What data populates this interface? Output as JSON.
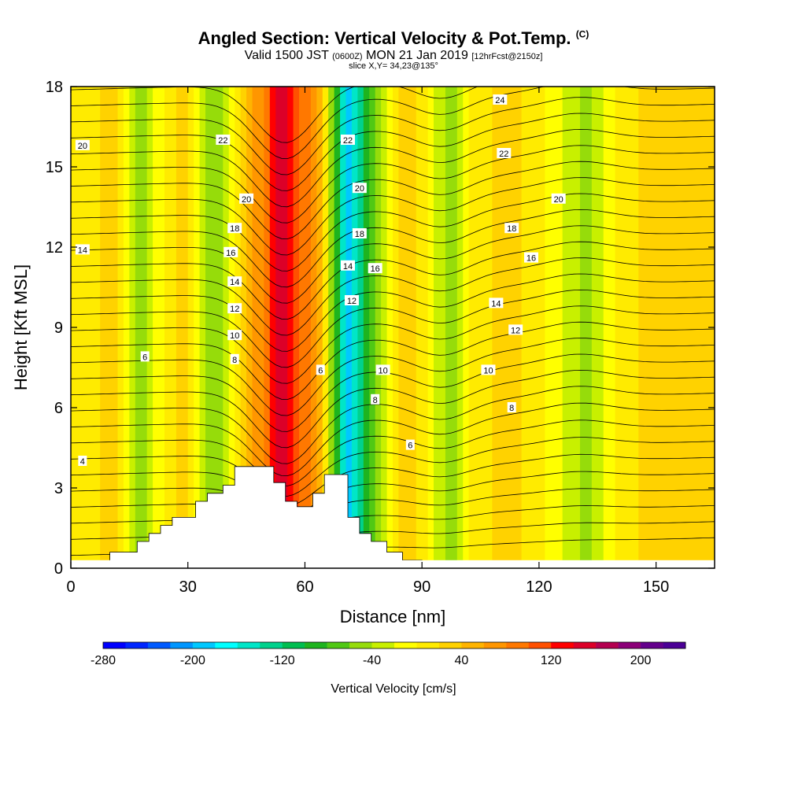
{
  "header": {
    "title": "Angled Section: Vertical Velocity & Pot.Temp.",
    "title_tag": "(C)",
    "valid_prefix": "Valid 1500 JST",
    "valid_utc": "(0600Z)",
    "valid_date": "MON 21 Jan 2019",
    "valid_fcst": "[12hrFcst@2150z]",
    "slice": "slice X,Y= 34,23@135°"
  },
  "chart_data": {
    "type": "heatmap",
    "xlabel": "Distance [nm]",
    "ylabel": "Height [Kft MSL]",
    "xlim": [
      0,
      165
    ],
    "ylim": [
      0,
      18
    ],
    "x_ticks": [
      0,
      30,
      60,
      90,
      120,
      150
    ],
    "y_ticks": [
      0,
      3,
      6,
      9,
      12,
      15,
      18
    ],
    "grid": false,
    "field": "Vertical Velocity",
    "velocity_bands": [
      {
        "x": 0,
        "value": 10
      },
      {
        "x": 12,
        "value": 25
      },
      {
        "x": 18,
        "value": -50
      },
      {
        "x": 24,
        "value": 5
      },
      {
        "x": 30,
        "value": 30
      },
      {
        "x": 35,
        "value": -60
      },
      {
        "x": 40,
        "value": -30
      },
      {
        "x": 45,
        "value": 40
      },
      {
        "x": 50,
        "value": 90
      },
      {
        "x": 54,
        "value": 160
      },
      {
        "x": 58,
        "value": 110
      },
      {
        "x": 64,
        "value": 50
      },
      {
        "x": 68,
        "value": -90
      },
      {
        "x": 71,
        "value": -190
      },
      {
        "x": 75,
        "value": -110
      },
      {
        "x": 80,
        "value": -30
      },
      {
        "x": 86,
        "value": 40
      },
      {
        "x": 92,
        "value": 0
      },
      {
        "x": 97,
        "value": -60
      },
      {
        "x": 103,
        "value": 10
      },
      {
        "x": 112,
        "value": 30
      },
      {
        "x": 120,
        "value": 10
      },
      {
        "x": 128,
        "value": -30
      },
      {
        "x": 133,
        "value": -50
      },
      {
        "x": 140,
        "value": 10
      },
      {
        "x": 150,
        "value": 30
      },
      {
        "x": 165,
        "value": 20
      }
    ],
    "terrain_profile": [
      [
        10,
        0.6
      ],
      [
        17,
        0.6
      ],
      [
        17,
        1.0
      ],
      [
        20,
        1.0
      ],
      [
        20,
        1.3
      ],
      [
        23,
        1.3
      ],
      [
        23,
        1.6
      ],
      [
        26,
        1.6
      ],
      [
        26,
        1.9
      ],
      [
        32,
        1.9
      ],
      [
        32,
        2.5
      ],
      [
        35,
        2.5
      ],
      [
        35,
        2.8
      ],
      [
        39,
        2.8
      ],
      [
        39,
        3.1
      ],
      [
        42,
        3.1
      ],
      [
        42,
        3.8
      ],
      [
        52,
        3.8
      ],
      [
        52,
        3.2
      ],
      [
        55,
        3.2
      ],
      [
        55,
        2.5
      ],
      [
        58,
        2.5
      ],
      [
        58,
        2.3
      ],
      [
        62,
        2.3
      ],
      [
        62,
        2.8
      ],
      [
        65,
        2.8
      ],
      [
        65,
        3.5
      ],
      [
        71,
        3.5
      ],
      [
        71,
        1.9
      ],
      [
        74,
        1.9
      ],
      [
        74,
        1.3
      ],
      [
        77,
        1.3
      ],
      [
        77,
        1.0
      ],
      [
        81,
        1.0
      ],
      [
        81,
        0.6
      ],
      [
        85,
        0.6
      ],
      [
        85,
        0.3
      ],
      [
        90,
        0.3
      ]
    ],
    "contour_labels": [
      {
        "text": "24",
        "x": 110,
        "y": 17.5
      },
      {
        "text": "22",
        "x": 39,
        "y": 16.0
      },
      {
        "text": "22",
        "x": 71,
        "y": 16.0
      },
      {
        "text": "22",
        "x": 111,
        "y": 15.5
      },
      {
        "text": "20",
        "x": 3,
        "y": 15.8
      },
      {
        "text": "20",
        "x": 45,
        "y": 13.8
      },
      {
        "text": "20",
        "x": 74,
        "y": 14.2
      },
      {
        "text": "20",
        "x": 125,
        "y": 13.8
      },
      {
        "text": "18",
        "x": 42,
        "y": 12.7
      },
      {
        "text": "18",
        "x": 74,
        "y": 12.5
      },
      {
        "text": "18",
        "x": 113,
        "y": 12.7
      },
      {
        "text": "16",
        "x": 41,
        "y": 11.8
      },
      {
        "text": "16",
        "x": 78,
        "y": 11.2
      },
      {
        "text": "16",
        "x": 118,
        "y": 11.6
      },
      {
        "text": "14",
        "x": 3,
        "y": 11.9
      },
      {
        "text": "14",
        "x": 42,
        "y": 10.7
      },
      {
        "text": "14",
        "x": 71,
        "y": 11.3
      },
      {
        "text": "14",
        "x": 109,
        "y": 9.9
      },
      {
        "text": "12",
        "x": 42,
        "y": 9.7
      },
      {
        "text": "12",
        "x": 72,
        "y": 10.0
      },
      {
        "text": "12",
        "x": 114,
        "y": 8.9
      },
      {
        "text": "10",
        "x": 42,
        "y": 8.7
      },
      {
        "text": "10",
        "x": 80,
        "y": 7.4
      },
      {
        "text": "10",
        "x": 107,
        "y": 7.4
      },
      {
        "text": "8",
        "x": 42,
        "y": 7.8
      },
      {
        "text": "8",
        "x": 78,
        "y": 6.3
      },
      {
        "text": "8",
        "x": 113,
        "y": 6.0
      },
      {
        "text": "6",
        "x": 19,
        "y": 7.9
      },
      {
        "text": "6",
        "x": 64,
        "y": 7.4
      },
      {
        "text": "6",
        "x": 87,
        "y": 4.6
      },
      {
        "text": "4",
        "x": 3,
        "y": 4.0
      }
    ],
    "colorbar": {
      "label": "Vertical Velocity [cm/s]",
      "min": -280,
      "max": 240,
      "step": 20,
      "tick_values": [
        -280,
        -200,
        -120,
        -40,
        40,
        120,
        200
      ],
      "tick_labels": [
        "-280",
        "-200",
        "-120",
        "-40",
        "40",
        "120",
        "200"
      ],
      "colors": [
        "#0000ff",
        "#0026ff",
        "#005aff",
        "#0096ff",
        "#00c8ff",
        "#00ffff",
        "#00e6c8",
        "#00d28c",
        "#00be50",
        "#1eb41e",
        "#50c814",
        "#96dc0a",
        "#c8f000",
        "#ffff00",
        "#ffeb00",
        "#ffd200",
        "#ffb400",
        "#ff9600",
        "#ff7800",
        "#ff5000",
        "#ff0000",
        "#dc0028",
        "#b40050",
        "#8c0078",
        "#64008c",
        "#4b0096"
      ]
    }
  }
}
